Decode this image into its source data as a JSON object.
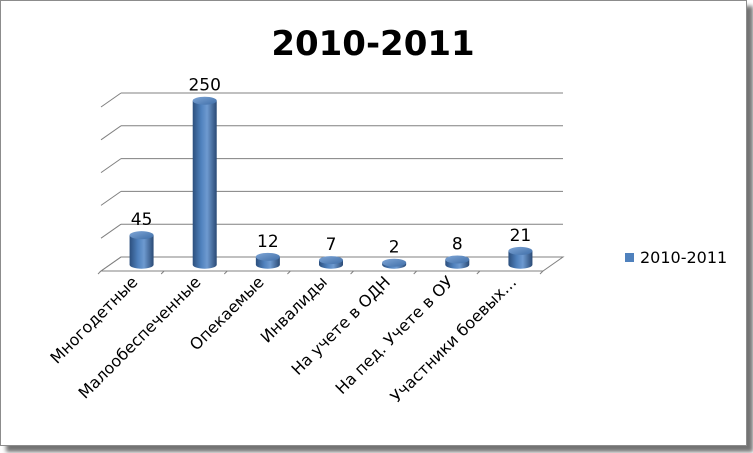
{
  "chart_data": {
    "type": "bar",
    "title": "2010-2011",
    "categories": [
      "Многодетные",
      "Малообеспеченные",
      "Опекаемые",
      "Инвалиды",
      "На учете в ОДН",
      "На пед. Учете в ОУ",
      "Участники боевых…"
    ],
    "series": [
      {
        "name": "2010-2011",
        "values": [
          45,
          250,
          12,
          7,
          2,
          8,
          21
        ],
        "color": "#4F81BD"
      }
    ],
    "ylim": [
      0,
      250
    ],
    "grid": true,
    "legend": "right",
    "xlabel": "",
    "ylabel": ""
  }
}
